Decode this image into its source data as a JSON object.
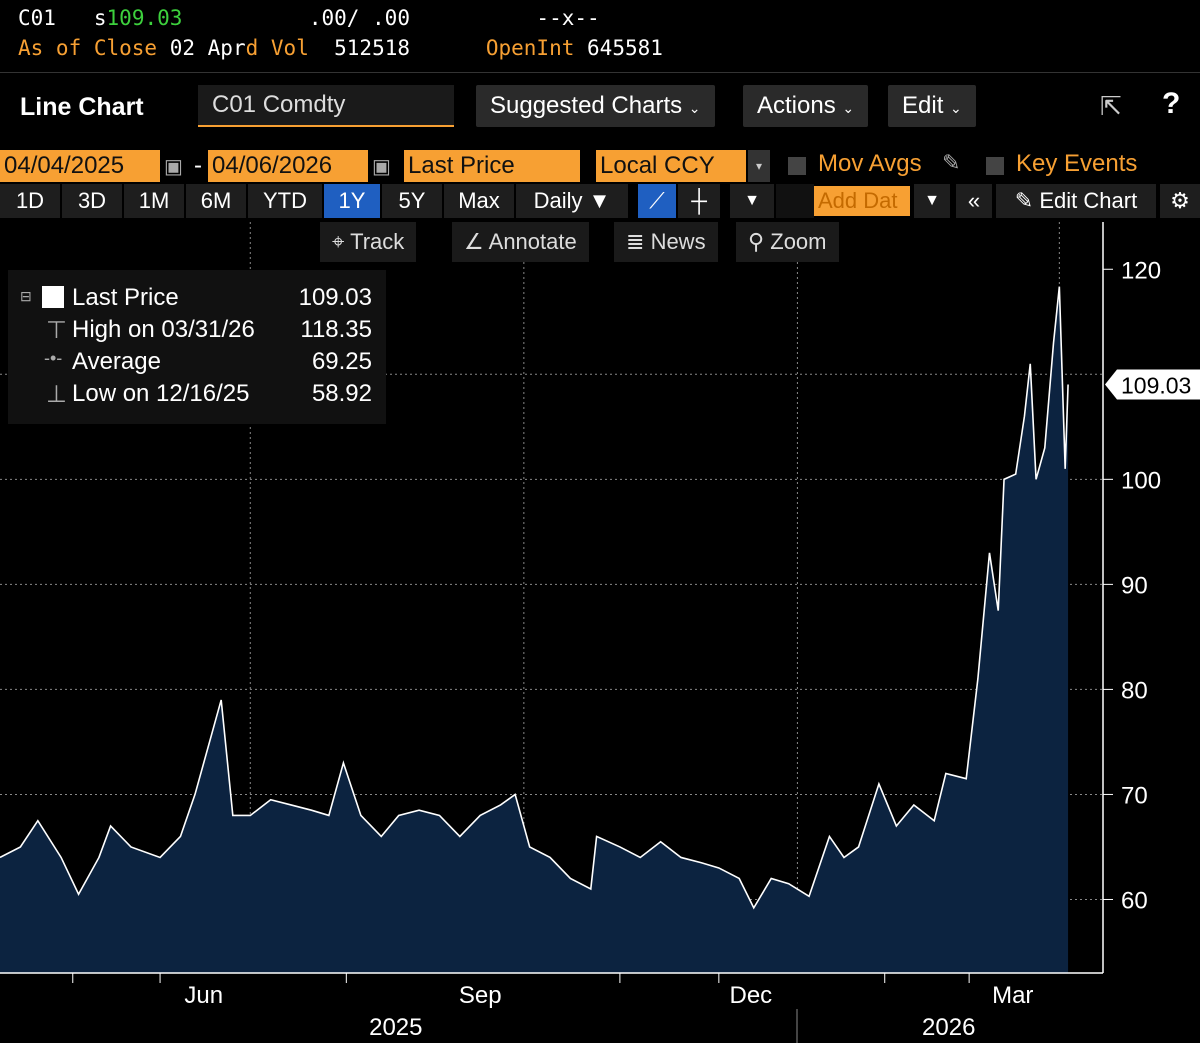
{
  "header": {
    "ticker": "C01",
    "price_prefix": "s",
    "price": "109.03",
    "bidask": ".00/ .00",
    "x": "--x--",
    "asof_label": "As of Close",
    "asof_date": "02 Apr",
    "d": "d",
    "vol_label": "Vol",
    "vol": "512518",
    "openint_label": "OpenInt",
    "openint": "645581"
  },
  "toolbar": {
    "title": "Line Chart",
    "security": "C01 Comdty",
    "suggested": "Suggested Charts",
    "actions": "Actions",
    "edit": "Edit",
    "export_icon": "export-icon",
    "help": "?"
  },
  "range": {
    "start": "04/04/2025",
    "end": "04/06/2026",
    "field": "Last Price",
    "currency": "Local CCY",
    "mov_avgs": "Mov Avgs",
    "key_events": "Key Events"
  },
  "periods": [
    "1D",
    "3D",
    "1M",
    "6M",
    "YTD",
    "1Y",
    "5Y",
    "Max"
  ],
  "selected_period": "1Y",
  "frequency": "Daily ▼",
  "add_data": "Add Dat",
  "edit_chart": "Edit Chart",
  "tools": {
    "track": "Track",
    "annotate": "Annotate",
    "news": "News",
    "zoom": "Zoom"
  },
  "legend": {
    "last_label": "Last Price",
    "last": "109.03",
    "high_label": "High on 03/31/26",
    "high": "118.35",
    "avg_label": "Average",
    "avg": "69.25",
    "low_label": "Low on 12/16/25",
    "low": "58.92"
  },
  "chart_data": {
    "type": "area",
    "title": "C01 Comdty Last Price",
    "x_unit": "days since 04/04/2025",
    "points": [
      [
        0,
        64
      ],
      [
        7,
        65
      ],
      [
        13,
        67.5
      ],
      [
        21,
        64
      ],
      [
        27,
        60.5
      ],
      [
        34,
        64
      ],
      [
        38,
        67
      ],
      [
        45,
        65
      ],
      [
        55,
        64
      ],
      [
        62,
        66
      ],
      [
        67,
        70
      ],
      [
        72,
        75
      ],
      [
        76,
        79
      ],
      [
        80,
        68
      ],
      [
        86,
        68
      ],
      [
        93,
        69.5
      ],
      [
        100,
        69
      ],
      [
        107,
        68.5
      ],
      [
        113,
        68
      ],
      [
        118,
        73
      ],
      [
        124,
        68
      ],
      [
        131,
        66
      ],
      [
        137,
        68
      ],
      [
        144,
        68.5
      ],
      [
        151,
        68
      ],
      [
        158,
        66
      ],
      [
        165,
        68
      ],
      [
        172,
        69
      ],
      [
        177,
        70
      ],
      [
        182,
        65
      ],
      [
        189,
        64
      ],
      [
        196,
        62
      ],
      [
        203,
        61
      ],
      [
        205,
        66
      ],
      [
        213,
        65
      ],
      [
        220,
        64
      ],
      [
        227,
        65.5
      ],
      [
        234,
        64
      ],
      [
        241,
        63.5
      ],
      [
        247,
        63
      ],
      [
        254,
        62
      ],
      [
        259,
        59.2
      ],
      [
        265,
        62
      ],
      [
        271,
        61.5
      ],
      [
        278,
        60.3
      ],
      [
        285,
        66
      ],
      [
        290,
        64
      ],
      [
        295,
        65
      ],
      [
        302,
        71
      ],
      [
        308,
        67
      ],
      [
        314,
        69
      ],
      [
        321,
        67.5
      ],
      [
        325,
        72
      ],
      [
        332,
        71.5
      ],
      [
        336,
        81
      ],
      [
        340,
        93
      ],
      [
        343,
        87.5
      ],
      [
        345,
        100
      ],
      [
        349,
        100.5
      ],
      [
        352,
        106
      ],
      [
        354,
        111
      ],
      [
        356,
        100
      ],
      [
        359,
        103
      ],
      [
        362,
        113
      ],
      [
        364,
        118.35
      ],
      [
        366,
        101
      ],
      [
        367,
        109.03
      ]
    ],
    "xlim": [
      0,
      379
    ],
    "ylim": [
      53,
      124.5
    ],
    "yticks": [
      60,
      70,
      80,
      90,
      100,
      120
    ],
    "gridlines_y": [
      60,
      70,
      80,
      90,
      100,
      110
    ],
    "current_tag": "109.03",
    "xticks": [
      {
        "label": "Jun",
        "day": 70
      },
      {
        "label": "Sep",
        "day": 165
      },
      {
        "label": "Dec",
        "day": 258
      },
      {
        "label": "Mar",
        "day": 348
      }
    ],
    "year_labels": [
      {
        "label": "2025",
        "day": 136
      },
      {
        "label": "2026",
        "day": 326
      }
    ],
    "gridlines_x_days": [
      86,
      180,
      274,
      364
    ],
    "colors": {
      "line": "#ffffff",
      "fill": "#0c2340",
      "grid": "#888888"
    }
  }
}
